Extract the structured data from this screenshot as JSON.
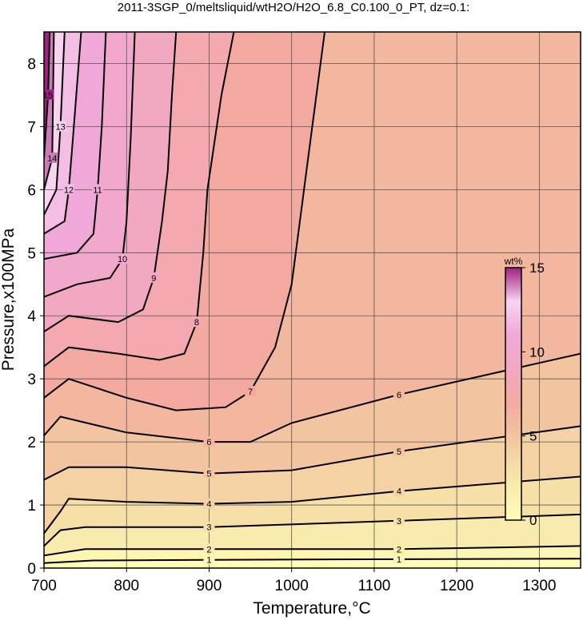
{
  "chart_data": {
    "type": "contour",
    "title": "2011-3SGP_0/meltsliquid/wtH2O/H2O_6.8_C0.100_0_PT, dz=0.1:",
    "x_label": "Temperature,°C",
    "y_label": "Pressure,x100MPa",
    "xlim": [
      700,
      1350
    ],
    "ylim": [
      0,
      8.5
    ],
    "xticks": [
      700,
      800,
      900,
      1000,
      1100,
      1200,
      1300
    ],
    "yticks": [
      0,
      1,
      2,
      3,
      4,
      5,
      6,
      7,
      8
    ],
    "grid": true,
    "colorbar": {
      "label": "wt%",
      "clim": [
        0,
        15
      ],
      "ticks": [
        0,
        5,
        10,
        15
      ]
    },
    "colormap": [
      {
        "value": 0,
        "color": "#ffffb8"
      },
      {
        "value": 3,
        "color": "#f6e0a8"
      },
      {
        "value": 5,
        "color": "#f2c4a0"
      },
      {
        "value": 7,
        "color": "#f4a9a0"
      },
      {
        "value": 9,
        "color": "#f3a8c2"
      },
      {
        "value": 11,
        "color": "#f0a8d8"
      },
      {
        "value": 13,
        "color": "#f8d4f0"
      },
      {
        "value": 15,
        "color": "#a02080"
      }
    ],
    "contours": [
      {
        "level": 1,
        "x": [
          700,
          760,
          900,
          1130,
          1350
        ],
        "y": [
          0.08,
          0.12,
          0.13,
          0.14,
          0.15
        ]
      },
      {
        "level": 2,
        "x": [
          700,
          750,
          900,
          1130,
          1350
        ],
        "y": [
          0.2,
          0.3,
          0.3,
          0.3,
          0.35
        ]
      },
      {
        "level": 3,
        "x": [
          700,
          720,
          750,
          900,
          1130,
          1350
        ],
        "y": [
          0.35,
          0.6,
          0.65,
          0.65,
          0.75,
          0.85
        ]
      },
      {
        "level": 4,
        "x": [
          700,
          720,
          730,
          800,
          900,
          1000,
          1130,
          1350
        ],
        "y": [
          0.55,
          0.9,
          1.1,
          1.05,
          1.02,
          1.05,
          1.22,
          1.45
        ]
      },
      {
        "level": 5,
        "x": [
          700,
          730,
          800,
          900,
          1000,
          1130,
          1350
        ],
        "y": [
          1.4,
          1.6,
          1.6,
          1.5,
          1.55,
          1.85,
          2.25
        ]
      },
      {
        "level": 6,
        "x": [
          700,
          720,
          800,
          900,
          950,
          1000,
          1130,
          1350
        ],
        "y": [
          2.1,
          2.4,
          2.15,
          2.0,
          2.0,
          2.3,
          2.75,
          3.4
        ]
      },
      {
        "level": 7,
        "x": [
          700,
          730,
          800,
          860,
          920,
          950,
          980,
          1000,
          1020,
          1040
        ],
        "y": [
          2.7,
          3.0,
          2.7,
          2.5,
          2.55,
          2.8,
          3.5,
          4.5,
          6.5,
          8.5
        ]
      },
      {
        "level": 8,
        "x": [
          700,
          730,
          790,
          840,
          870,
          885,
          893,
          898,
          915,
          930
        ],
        "y": [
          3.2,
          3.5,
          3.4,
          3.3,
          3.4,
          3.9,
          5,
          6,
          7.5,
          8.5
        ]
      },
      {
        "level": 9,
        "x": [
          700,
          730,
          790,
          820,
          833,
          843,
          850,
          855,
          860
        ],
        "y": [
          3.75,
          4.0,
          3.9,
          4.1,
          4.6,
          5.5,
          6.3,
          7.5,
          8.5
        ]
      },
      {
        "level": 10,
        "x": [
          700,
          740,
          780,
          795,
          800,
          805,
          810
        ],
        "y": [
          4.3,
          4.5,
          4.6,
          4.9,
          5.5,
          6.8,
          8.5
        ]
      },
      {
        "level": 11,
        "x": [
          700,
          740,
          760,
          765,
          770,
          775
        ],
        "y": [
          4.9,
          5.0,
          5.3,
          6.0,
          7.0,
          8.5
        ]
      },
      {
        "level": 12,
        "x": [
          700,
          725,
          730,
          735,
          745
        ],
        "y": [
          5.3,
          5.5,
          6.0,
          6.8,
          8.5
        ]
      },
      {
        "level": 13,
        "x": [
          700,
          715,
          720,
          725
        ],
        "y": [
          5.6,
          6.0,
          7.0,
          8.5
        ]
      },
      {
        "level": 14,
        "x": [
          700,
          710,
          712
        ],
        "y": [
          6.0,
          6.5,
          8.5
        ]
      },
      {
        "level": 15,
        "x": [
          700,
          705,
          707
        ],
        "y": [
          6.5,
          7.5,
          8.5
        ]
      }
    ]
  }
}
